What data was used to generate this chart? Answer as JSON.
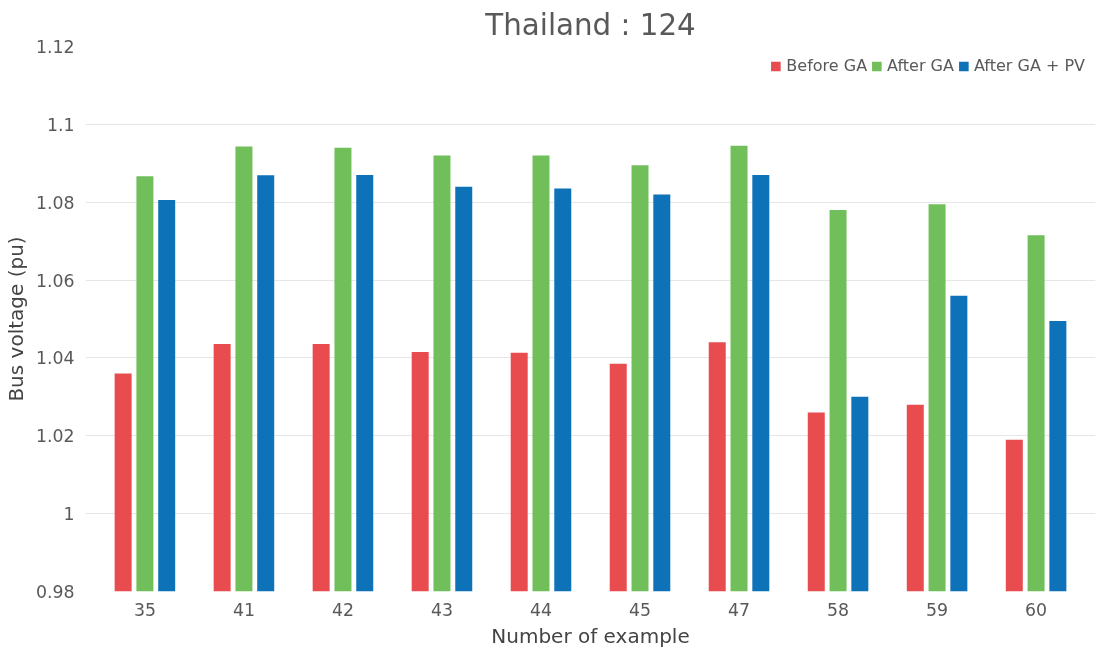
{
  "chart_data": {
    "type": "bar",
    "title": "Thailand : 124",
    "xlabel": "Number of example",
    "ylabel": "Bus voltage (pu)",
    "categories": [
      "35",
      "41",
      "42",
      "43",
      "44",
      "45",
      "47",
      "58",
      "59",
      "60"
    ],
    "series": [
      {
        "name": "Before GA",
        "color": "#e84c4f",
        "values": [
          1.036,
          1.0436,
          1.0436,
          1.0415,
          1.0413,
          1.0385,
          1.044,
          1.026,
          1.028,
          1.019
        ]
      },
      {
        "name": "After GA",
        "color": "#70bf5a",
        "values": [
          1.0867,
          1.0943,
          1.094,
          1.092,
          1.092,
          1.0895,
          1.0945,
          1.078,
          1.0795,
          1.0715
        ]
      },
      {
        "name": "After GA + PV",
        "color": "#0d72b8",
        "values": [
          1.0806,
          1.0869,
          1.087,
          1.084,
          1.0835,
          1.082,
          1.087,
          1.03,
          1.056,
          1.0495
        ]
      }
    ],
    "ylim": [
      0.98,
      1.12
    ],
    "yticks": [
      0.98,
      1,
      1.02,
      1.04,
      1.06,
      1.08,
      1.1,
      1.12
    ],
    "grid": "y",
    "legend": "top right"
  }
}
